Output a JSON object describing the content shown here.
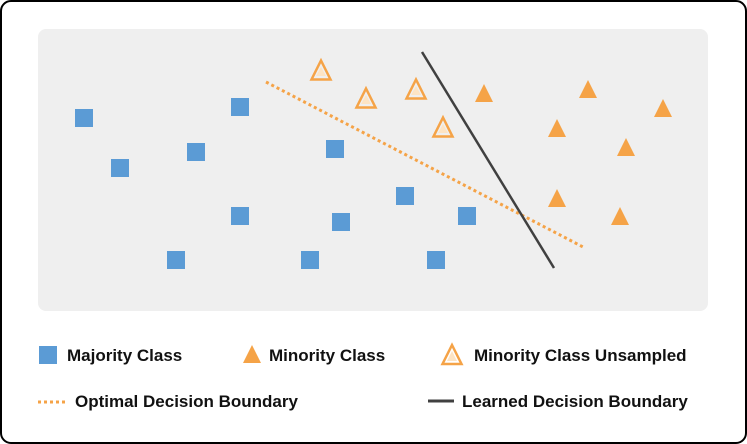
{
  "colors": {
    "majority": "#5b9bd5",
    "minority": "#f5a347",
    "minority_outline": "#f5a347",
    "optimal_line": "#f5a347",
    "learned_line": "#404040",
    "plot_bg": "#efefef",
    "frame": "#000000"
  },
  "legend": {
    "majority_label": "Majority Class",
    "minority_label": "Minority Class",
    "unsampled_label": "Minority Class Unsampled",
    "optimal_label": "Optimal Decision Boundary",
    "learned_label": "Learned Decision Boundary"
  },
  "majority_points": [
    [
      84,
      118
    ],
    [
      120,
      168
    ],
    [
      196,
      152
    ],
    [
      240,
      107
    ],
    [
      240,
      216
    ],
    [
      176,
      260
    ],
    [
      335,
      149
    ],
    [
      341,
      222
    ],
    [
      310,
      260
    ],
    [
      405,
      196
    ],
    [
      467,
      216
    ],
    [
      436,
      260
    ]
  ],
  "minority_points": [
    [
      484,
      93
    ],
    [
      588,
      89
    ],
    [
      663,
      108
    ],
    [
      557,
      128
    ],
    [
      626,
      147
    ],
    [
      557,
      198
    ],
    [
      620,
      216
    ]
  ],
  "unsampled_points": [
    [
      321,
      70
    ],
    [
      366,
      98
    ],
    [
      416,
      89
    ],
    [
      443,
      127
    ]
  ],
  "optimal_boundary": [
    [
      266,
      82
    ],
    [
      585,
      248
    ]
  ],
  "learned_boundary": [
    [
      422,
      52
    ],
    [
      554,
      268
    ]
  ]
}
